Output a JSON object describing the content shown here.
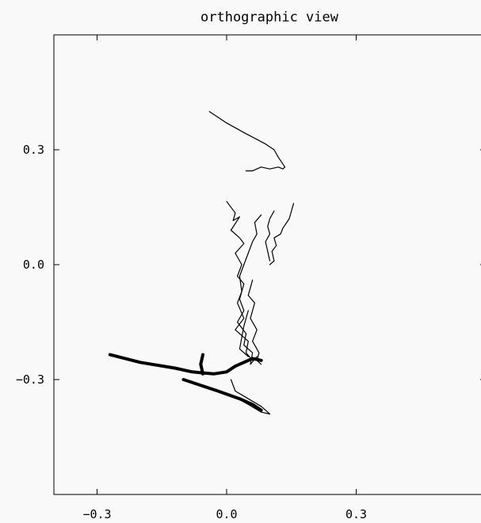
{
  "chart_data": {
    "type": "line",
    "title": "orthographic view",
    "xlabel": "",
    "ylabel": "",
    "xlim": [
      -0.4,
      0.6
    ],
    "ylim": [
      -0.6,
      0.6
    ],
    "grid": false,
    "legend": "none",
    "line_color": "#000000",
    "background_color": "#f9f9f9",
    "x_ticks": [
      {
        "value": -0.3,
        "label": "−0.3"
      },
      {
        "value": 0.0,
        "label": "0.0"
      },
      {
        "value": 0.3,
        "label": "0.3"
      }
    ],
    "y_ticks": [
      {
        "value": 0.3,
        "label": "0.3"
      },
      {
        "value": 0.0,
        "label": "0.0"
      },
      {
        "value": -0.3,
        "label": "−0.3"
      }
    ],
    "series": [
      {
        "weight": "thin",
        "points": [
          [
            -0.04,
            0.4
          ],
          [
            0.0,
            0.37
          ],
          [
            0.04,
            0.345
          ],
          [
            0.09,
            0.315
          ],
          [
            0.11,
            0.3
          ],
          [
            0.12,
            0.28
          ],
          [
            0.135,
            0.255
          ],
          [
            0.13,
            0.25
          ],
          [
            0.12,
            0.255
          ],
          [
            0.1,
            0.25
          ],
          [
            0.08,
            0.255
          ],
          [
            0.06,
            0.245
          ],
          [
            0.045,
            0.245
          ]
        ]
      },
      {
        "weight": "thin",
        "points": [
          [
            0.0,
            0.165
          ],
          [
            0.02,
            0.135
          ],
          [
            0.015,
            0.115
          ],
          [
            0.03,
            0.125
          ],
          [
            0.01,
            0.09
          ],
          [
            0.03,
            0.07
          ],
          [
            0.04,
            0.055
          ],
          [
            0.02,
            0.03
          ],
          [
            0.035,
            0.0
          ],
          [
            0.025,
            -0.03
          ],
          [
            0.04,
            -0.05
          ],
          [
            0.03,
            -0.09
          ],
          [
            0.04,
            -0.12
          ],
          [
            0.025,
            -0.15
          ],
          [
            0.045,
            -0.18
          ],
          [
            0.04,
            -0.21
          ],
          [
            0.06,
            -0.23
          ],
          [
            0.055,
            -0.26
          ],
          [
            0.07,
            -0.24
          ]
        ]
      },
      {
        "weight": "thin",
        "points": [
          [
            0.08,
            0.13
          ],
          [
            0.065,
            0.11
          ],
          [
            0.07,
            0.08
          ],
          [
            0.06,
            0.06
          ],
          [
            0.05,
            0.03
          ],
          [
            0.04,
            0.0
          ],
          [
            0.03,
            -0.03
          ],
          [
            0.035,
            -0.07
          ],
          [
            0.025,
            -0.1
          ],
          [
            0.04,
            -0.14
          ],
          [
            0.02,
            -0.17
          ],
          [
            0.05,
            -0.2
          ],
          [
            0.045,
            -0.23
          ],
          [
            0.06,
            -0.25
          ]
        ]
      },
      {
        "weight": "thin",
        "points": [
          [
            0.155,
            0.16
          ],
          [
            0.145,
            0.12
          ],
          [
            0.13,
            0.095
          ],
          [
            0.125,
            0.08
          ],
          [
            0.11,
            0.07
          ],
          [
            0.115,
            0.05
          ],
          [
            0.105,
            0.035
          ],
          [
            0.11,
            0.01
          ],
          [
            0.1,
            0.0
          ]
        ]
      },
      {
        "weight": "thin",
        "points": [
          [
            0.11,
            0.14
          ],
          [
            0.1,
            0.12
          ],
          [
            0.095,
            0.1
          ],
          [
            0.1,
            0.08
          ],
          [
            0.09,
            0.06
          ],
          [
            0.095,
            0.035
          ],
          [
            0.1,
            0.01
          ]
        ]
      },
      {
        "weight": "thin",
        "points": [
          [
            0.06,
            -0.04
          ],
          [
            0.05,
            -0.08
          ],
          [
            0.065,
            -0.1
          ],
          [
            0.055,
            -0.14
          ],
          [
            0.07,
            -0.17
          ],
          [
            0.06,
            -0.2
          ],
          [
            0.075,
            -0.23
          ],
          [
            0.07,
            -0.25
          ],
          [
            0.08,
            -0.26
          ]
        ]
      },
      {
        "weight": "thin",
        "points": [
          [
            0.05,
            -0.12
          ],
          [
            0.04,
            -0.16
          ],
          [
            0.035,
            -0.19
          ],
          [
            0.03,
            -0.22
          ],
          [
            0.05,
            -0.24
          ]
        ]
      },
      {
        "weight": "thin",
        "points": [
          [
            0.01,
            -0.3
          ],
          [
            0.02,
            -0.33
          ],
          [
            0.05,
            -0.35
          ],
          [
            0.08,
            -0.37
          ],
          [
            0.1,
            -0.39
          ],
          [
            0.08,
            -0.385
          ],
          [
            0.05,
            -0.365
          ],
          [
            0.01,
            -0.34
          ]
        ]
      },
      {
        "weight": "thick",
        "points": [
          [
            -0.27,
            -0.235
          ],
          [
            -0.2,
            -0.255
          ],
          [
            -0.12,
            -0.27
          ],
          [
            -0.08,
            -0.28
          ],
          [
            -0.03,
            -0.285
          ],
          [
            0.0,
            -0.28
          ],
          [
            0.02,
            -0.265
          ],
          [
            0.04,
            -0.255
          ],
          [
            0.06,
            -0.245
          ],
          [
            0.08,
            -0.25
          ]
        ]
      },
      {
        "weight": "thick",
        "points": [
          [
            -0.055,
            -0.235
          ],
          [
            -0.06,
            -0.26
          ],
          [
            -0.055,
            -0.285
          ]
        ]
      },
      {
        "weight": "thick",
        "points": [
          [
            -0.1,
            -0.3
          ],
          [
            -0.02,
            -0.33
          ],
          [
            0.03,
            -0.35
          ],
          [
            0.06,
            -0.365
          ],
          [
            0.08,
            -0.38
          ]
        ]
      }
    ]
  }
}
